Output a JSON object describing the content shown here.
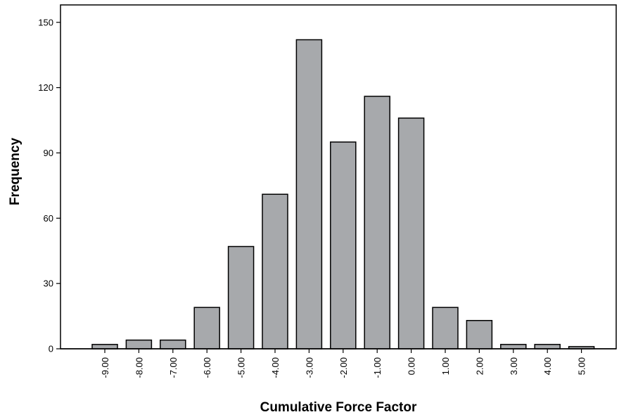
{
  "chart_data": {
    "type": "bar",
    "title": "",
    "xlabel": "Cumulative Force Factor",
    "ylabel": "Frequency",
    "categories": [
      "-9.00",
      "-8.00",
      "-7.00",
      "-6.00",
      "-5.00",
      "-4.00",
      "-3.00",
      "-2.00",
      "-1.00",
      "0.00",
      "1.00",
      "2.00",
      "3.00",
      "4.00",
      "5.00"
    ],
    "values": [
      2,
      4,
      4,
      19,
      47,
      71,
      142,
      95,
      116,
      106,
      19,
      13,
      2,
      2,
      1
    ],
    "ylim": [
      0,
      157
    ],
    "yticks": [
      0,
      30,
      60,
      90,
      120,
      150
    ],
    "grid": false,
    "bar_color": "#a7a9ac",
    "bar_edge_color": "#000000"
  }
}
